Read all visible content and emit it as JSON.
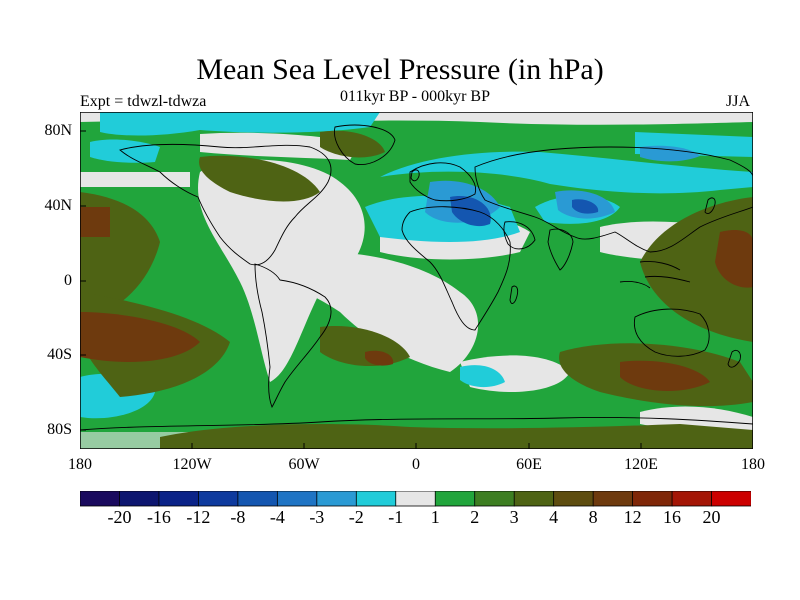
{
  "title": "Mean Sea Level Pressure (in hPa)",
  "subtitle": "011kyr BP - 000kyr BP",
  "experiment": "Expt = tdwzl-tdwza",
  "season": "JJA",
  "map": {
    "projection": "cylindrical-equidistant",
    "lon_range": [
      -180,
      180
    ],
    "lat_range": [
      -90,
      90
    ],
    "x_ticks": [
      "180",
      "120W",
      "60W",
      "0",
      "60E",
      "120E",
      "180"
    ],
    "y_ticks": [
      "80N",
      "40N",
      "0",
      "40S",
      "80S"
    ],
    "features": [
      "coastlines",
      "filled-contours"
    ]
  },
  "colorbar": {
    "colors": [
      "#1a0a5e",
      "#0d1670",
      "#0b2388",
      "#0e3a9e",
      "#1456b0",
      "#1f74c4",
      "#2a9ad4",
      "#21ccd9",
      "#e6e6e6",
      "#21a53c",
      "#3d7e22",
      "#4e6314",
      "#5e4d10",
      "#6e3a0e",
      "#7f2708",
      "#a41606",
      "#cc0000"
    ],
    "labels": [
      "-20",
      "-16",
      "-12",
      "-8",
      "-4",
      "-3",
      "-2",
      "-1",
      "1",
      "2",
      "3",
      "4",
      "8",
      "12",
      "16",
      "20"
    ]
  }
}
